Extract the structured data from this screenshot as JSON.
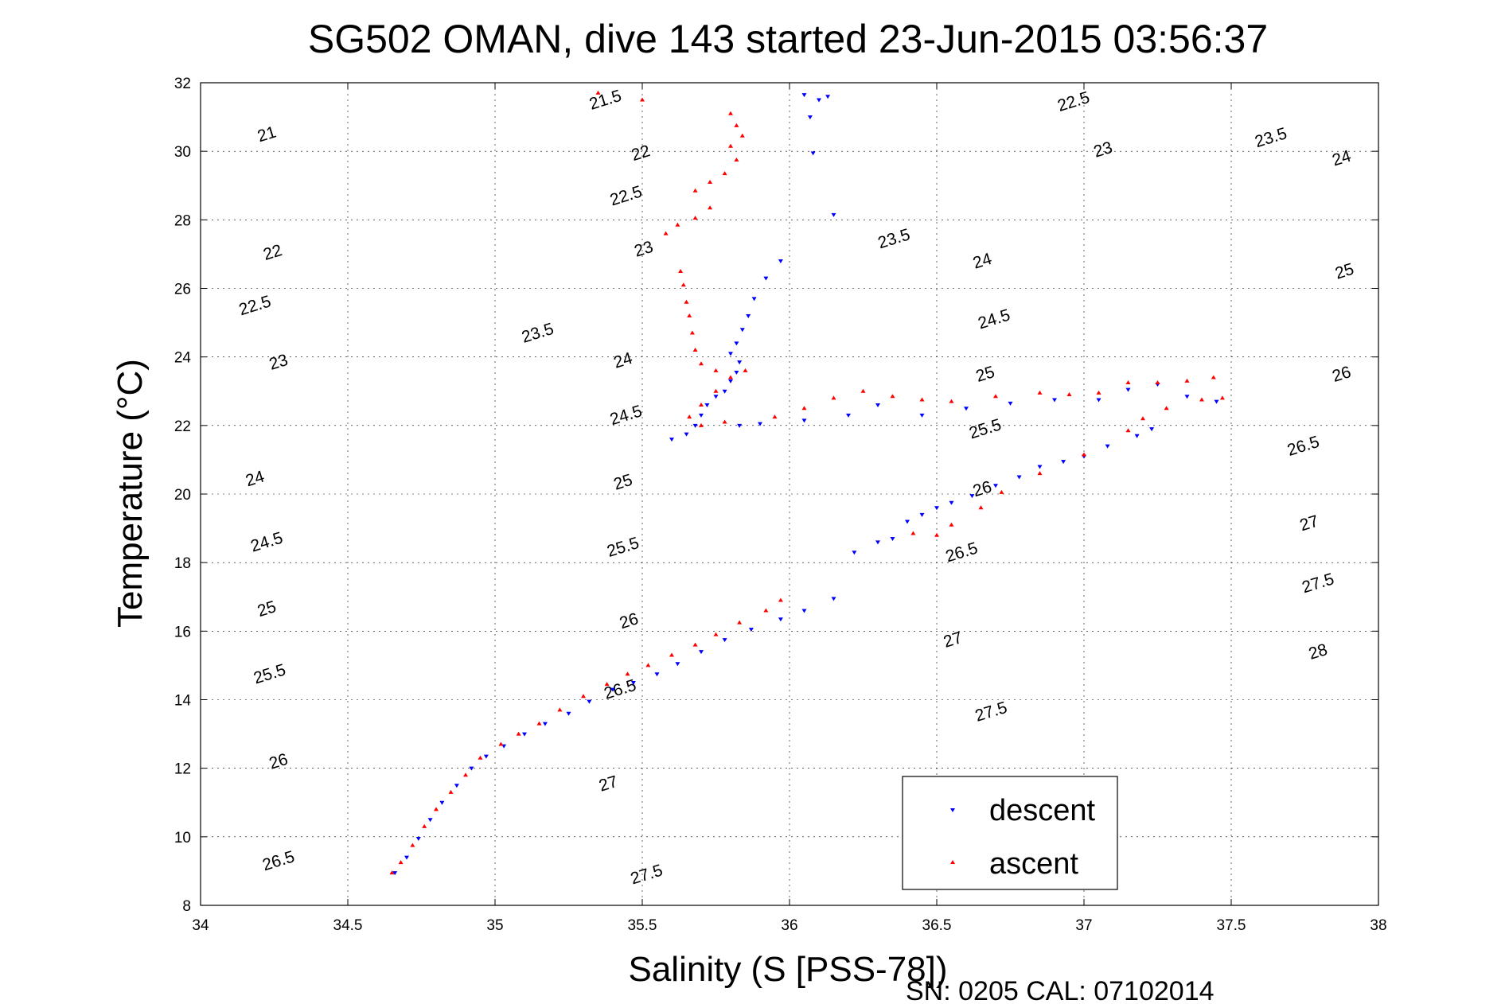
{
  "chart_data": {
    "type": "scatter",
    "title": "SG502 OMAN, dive 143 started 23-Jun-2015 03:56:37",
    "xlabel": "Salinity (S [PSS-78])",
    "ylabel": "Temperature (°C)",
    "footer": "SN: 0205  CAL: 07102014",
    "xlim": [
      34,
      38
    ],
    "ylim": [
      8,
      32
    ],
    "xticks": [
      34,
      34.5,
      35,
      35.5,
      36,
      36.5,
      37,
      37.5,
      38
    ],
    "yticks": [
      8,
      10,
      12,
      14,
      16,
      18,
      20,
      22,
      24,
      26,
      28,
      30,
      32
    ],
    "grid": true,
    "legend_position": "bottom-right",
    "colors": {
      "descent": "#0000ff",
      "ascent": "#ff0000",
      "contour": "#000000"
    },
    "density_contours": [
      21,
      21.5,
      22,
      22.5,
      23,
      23.5,
      24,
      24.5,
      25,
      25.5,
      26,
      26.5,
      27,
      27.5,
      28
    ],
    "contour_labels": [
      {
        "text": "21",
        "s": 34.23,
        "t": 30.35,
        "rot": -17
      },
      {
        "text": "21.5",
        "s": 35.38,
        "t": 31.35,
        "rot": -17
      },
      {
        "text": "22",
        "s": 34.25,
        "t": 26.9,
        "rot": -17
      },
      {
        "text": "22",
        "s": 35.5,
        "t": 29.8,
        "rot": -17
      },
      {
        "text": "22.5",
        "s": 34.19,
        "t": 25.35,
        "rot": -17
      },
      {
        "text": "22.5",
        "s": 35.45,
        "t": 28.55,
        "rot": -17
      },
      {
        "text": "22.5",
        "s": 36.97,
        "t": 31.3,
        "rot": -17
      },
      {
        "text": "23",
        "s": 34.27,
        "t": 23.7,
        "rot": -17
      },
      {
        "text": "23",
        "s": 35.51,
        "t": 27.0,
        "rot": -17
      },
      {
        "text": "23",
        "s": 37.07,
        "t": 29.9,
        "rot": -17
      },
      {
        "text": "23.5",
        "s": 35.15,
        "t": 24.55,
        "rot": -17
      },
      {
        "text": "23.5",
        "s": 36.36,
        "t": 27.3,
        "rot": -17
      },
      {
        "text": "23.5",
        "s": 37.64,
        "t": 30.25,
        "rot": -17
      },
      {
        "text": "24",
        "s": 34.19,
        "t": 20.3,
        "rot": -17
      },
      {
        "text": "24",
        "s": 35.44,
        "t": 23.75,
        "rot": -17
      },
      {
        "text": "24",
        "s": 36.66,
        "t": 26.65,
        "rot": -17
      },
      {
        "text": "24",
        "s": 37.88,
        "t": 29.65,
        "rot": -17
      },
      {
        "text": "24.5",
        "s": 34.23,
        "t": 18.45,
        "rot": -17
      },
      {
        "text": "24.5",
        "s": 35.45,
        "t": 22.15,
        "rot": -17
      },
      {
        "text": "24.5",
        "s": 36.7,
        "t": 24.95,
        "rot": -17
      },
      {
        "text": "25",
        "s": 34.23,
        "t": 16.5,
        "rot": -17
      },
      {
        "text": "25",
        "s": 35.44,
        "t": 20.2,
        "rot": -17
      },
      {
        "text": "25",
        "s": 36.67,
        "t": 23.35,
        "rot": -17
      },
      {
        "text": "25",
        "s": 37.89,
        "t": 26.35,
        "rot": -17
      },
      {
        "text": "25.5",
        "s": 34.24,
        "t": 14.6,
        "rot": -17
      },
      {
        "text": "25.5",
        "s": 35.44,
        "t": 18.3,
        "rot": -17
      },
      {
        "text": "25.5",
        "s": 36.67,
        "t": 21.75,
        "rot": -17
      },
      {
        "text": "26",
        "s": 34.27,
        "t": 12.05,
        "rot": -17
      },
      {
        "text": "26",
        "s": 35.46,
        "t": 16.15,
        "rot": -17
      },
      {
        "text": "26",
        "s": 36.66,
        "t": 20.0,
        "rot": -17
      },
      {
        "text": "26",
        "s": 37.88,
        "t": 23.35,
        "rot": -17
      },
      {
        "text": "26.5",
        "s": 34.27,
        "t": 9.15,
        "rot": -17
      },
      {
        "text": "26.5",
        "s": 35.43,
        "t": 14.15,
        "rot": -17
      },
      {
        "text": "26.5",
        "s": 36.59,
        "t": 18.15,
        "rot": -17
      },
      {
        "text": "26.5",
        "s": 37.75,
        "t": 21.25,
        "rot": -17
      },
      {
        "text": "27",
        "s": 35.39,
        "t": 11.4,
        "rot": -17
      },
      {
        "text": "27",
        "s": 36.56,
        "t": 15.6,
        "rot": -17
      },
      {
        "text": "27",
        "s": 37.77,
        "t": 19.0,
        "rot": -17
      },
      {
        "text": "27.5",
        "s": 35.52,
        "t": 8.75,
        "rot": -17
      },
      {
        "text": "27.5",
        "s": 36.69,
        "t": 13.5,
        "rot": -17
      },
      {
        "text": "27.5",
        "s": 37.8,
        "t": 17.25,
        "rot": -17
      },
      {
        "text": "28",
        "s": 37.8,
        "t": 15.25,
        "rot": -17
      }
    ],
    "series": [
      {
        "name": "descent",
        "marker": "triangle-down",
        "points": [
          [
            34.66,
            8.95
          ],
          [
            34.7,
            9.4
          ],
          [
            34.74,
            9.95
          ],
          [
            34.78,
            10.5
          ],
          [
            34.82,
            11.0
          ],
          [
            34.87,
            11.5
          ],
          [
            34.92,
            12.0
          ],
          [
            34.97,
            12.35
          ],
          [
            35.03,
            12.65
          ],
          [
            35.1,
            13.0
          ],
          [
            35.17,
            13.3
          ],
          [
            35.25,
            13.6
          ],
          [
            35.32,
            13.95
          ],
          [
            35.4,
            14.3
          ],
          [
            35.47,
            14.5
          ],
          [
            35.55,
            14.75
          ],
          [
            35.62,
            15.05
          ],
          [
            35.7,
            15.4
          ],
          [
            35.78,
            15.75
          ],
          [
            35.87,
            16.05
          ],
          [
            35.97,
            16.35
          ],
          [
            36.05,
            16.6
          ],
          [
            36.15,
            16.95
          ],
          [
            36.22,
            18.3
          ],
          [
            36.3,
            18.6
          ],
          [
            36.35,
            18.7
          ],
          [
            36.4,
            19.2
          ],
          [
            36.45,
            19.4
          ],
          [
            36.5,
            19.6
          ],
          [
            36.55,
            19.75
          ],
          [
            36.62,
            19.95
          ],
          [
            36.7,
            20.25
          ],
          [
            36.78,
            20.5
          ],
          [
            36.85,
            20.8
          ],
          [
            36.93,
            20.95
          ],
          [
            37.0,
            21.1
          ],
          [
            37.08,
            21.4
          ],
          [
            37.18,
            21.7
          ],
          [
            37.23,
            21.9
          ],
          [
            35.6,
            21.6
          ],
          [
            35.65,
            21.75
          ],
          [
            35.68,
            22.0
          ],
          [
            35.7,
            22.3
          ],
          [
            35.72,
            22.6
          ],
          [
            35.75,
            22.85
          ],
          [
            35.78,
            23.0
          ],
          [
            35.8,
            23.3
          ],
          [
            35.82,
            23.55
          ],
          [
            35.83,
            23.85
          ],
          [
            35.8,
            24.1
          ],
          [
            35.82,
            24.4
          ],
          [
            35.84,
            24.8
          ],
          [
            35.86,
            25.2
          ],
          [
            35.88,
            25.7
          ],
          [
            35.92,
            26.3
          ],
          [
            35.97,
            26.8
          ],
          [
            35.83,
            22.0
          ],
          [
            35.9,
            22.05
          ],
          [
            36.05,
            22.15
          ],
          [
            36.2,
            22.3
          ],
          [
            36.3,
            22.6
          ],
          [
            36.45,
            22.3
          ],
          [
            36.6,
            22.5
          ],
          [
            36.75,
            22.65
          ],
          [
            36.9,
            22.75
          ],
          [
            37.05,
            22.75
          ],
          [
            37.15,
            23.05
          ],
          [
            37.25,
            23.2
          ],
          [
            37.35,
            22.85
          ],
          [
            37.45,
            22.7
          ],
          [
            36.05,
            31.65
          ],
          [
            36.1,
            31.5
          ],
          [
            36.07,
            31.0
          ],
          [
            36.08,
            29.95
          ],
          [
            36.15,
            28.15
          ],
          [
            36.13,
            31.6
          ]
        ]
      },
      {
        "name": "ascent",
        "marker": "triangle-up",
        "points": [
          [
            34.65,
            8.95
          ],
          [
            34.68,
            9.25
          ],
          [
            34.72,
            9.75
          ],
          [
            34.76,
            10.3
          ],
          [
            34.8,
            10.8
          ],
          [
            34.85,
            11.3
          ],
          [
            34.9,
            11.8
          ],
          [
            34.95,
            12.3
          ],
          [
            35.02,
            12.7
          ],
          [
            35.08,
            13.0
          ],
          [
            35.15,
            13.3
          ],
          [
            35.22,
            13.7
          ],
          [
            35.3,
            14.1
          ],
          [
            35.38,
            14.45
          ],
          [
            35.45,
            14.75
          ],
          [
            35.52,
            15.0
          ],
          [
            35.6,
            15.3
          ],
          [
            35.68,
            15.6
          ],
          [
            35.75,
            15.9
          ],
          [
            35.83,
            16.25
          ],
          [
            35.92,
            16.6
          ],
          [
            35.97,
            16.9
          ],
          [
            36.5,
            18.8
          ],
          [
            36.42,
            18.85
          ],
          [
            36.55,
            19.1
          ],
          [
            36.65,
            19.6
          ],
          [
            36.72,
            20.05
          ],
          [
            36.85,
            20.6
          ],
          [
            37.0,
            21.15
          ],
          [
            37.15,
            21.85
          ],
          [
            37.2,
            22.2
          ],
          [
            37.28,
            22.5
          ],
          [
            37.4,
            22.75
          ],
          [
            37.47,
            22.8
          ],
          [
            37.44,
            23.4
          ],
          [
            37.35,
            23.3
          ],
          [
            37.25,
            23.25
          ],
          [
            37.15,
            23.25
          ],
          [
            37.05,
            22.95
          ],
          [
            36.95,
            22.9
          ],
          [
            36.85,
            22.95
          ],
          [
            36.7,
            22.85
          ],
          [
            36.55,
            22.7
          ],
          [
            36.45,
            22.75
          ],
          [
            36.35,
            22.85
          ],
          [
            36.25,
            23.0
          ],
          [
            36.15,
            22.8
          ],
          [
            36.05,
            22.5
          ],
          [
            35.95,
            22.25
          ],
          [
            35.85,
            23.6
          ],
          [
            35.8,
            23.4
          ],
          [
            35.75,
            23.0
          ],
          [
            35.7,
            22.6
          ],
          [
            35.66,
            22.25
          ],
          [
            35.7,
            22.0
          ],
          [
            35.78,
            22.1
          ],
          [
            35.75,
            23.6
          ],
          [
            35.7,
            23.8
          ],
          [
            35.68,
            24.2
          ],
          [
            35.67,
            24.7
          ],
          [
            35.66,
            25.2
          ],
          [
            35.65,
            25.6
          ],
          [
            35.64,
            26.1
          ],
          [
            35.63,
            26.5
          ],
          [
            35.58,
            27.6
          ],
          [
            35.62,
            27.85
          ],
          [
            35.68,
            28.05
          ],
          [
            35.73,
            28.35
          ],
          [
            35.68,
            28.85
          ],
          [
            35.73,
            29.1
          ],
          [
            35.78,
            29.35
          ],
          [
            35.82,
            29.75
          ],
          [
            35.8,
            30.15
          ],
          [
            35.84,
            30.45
          ],
          [
            35.82,
            30.75
          ],
          [
            35.8,
            31.1
          ],
          [
            35.35,
            31.7
          ],
          [
            35.5,
            31.5
          ]
        ]
      }
    ]
  }
}
